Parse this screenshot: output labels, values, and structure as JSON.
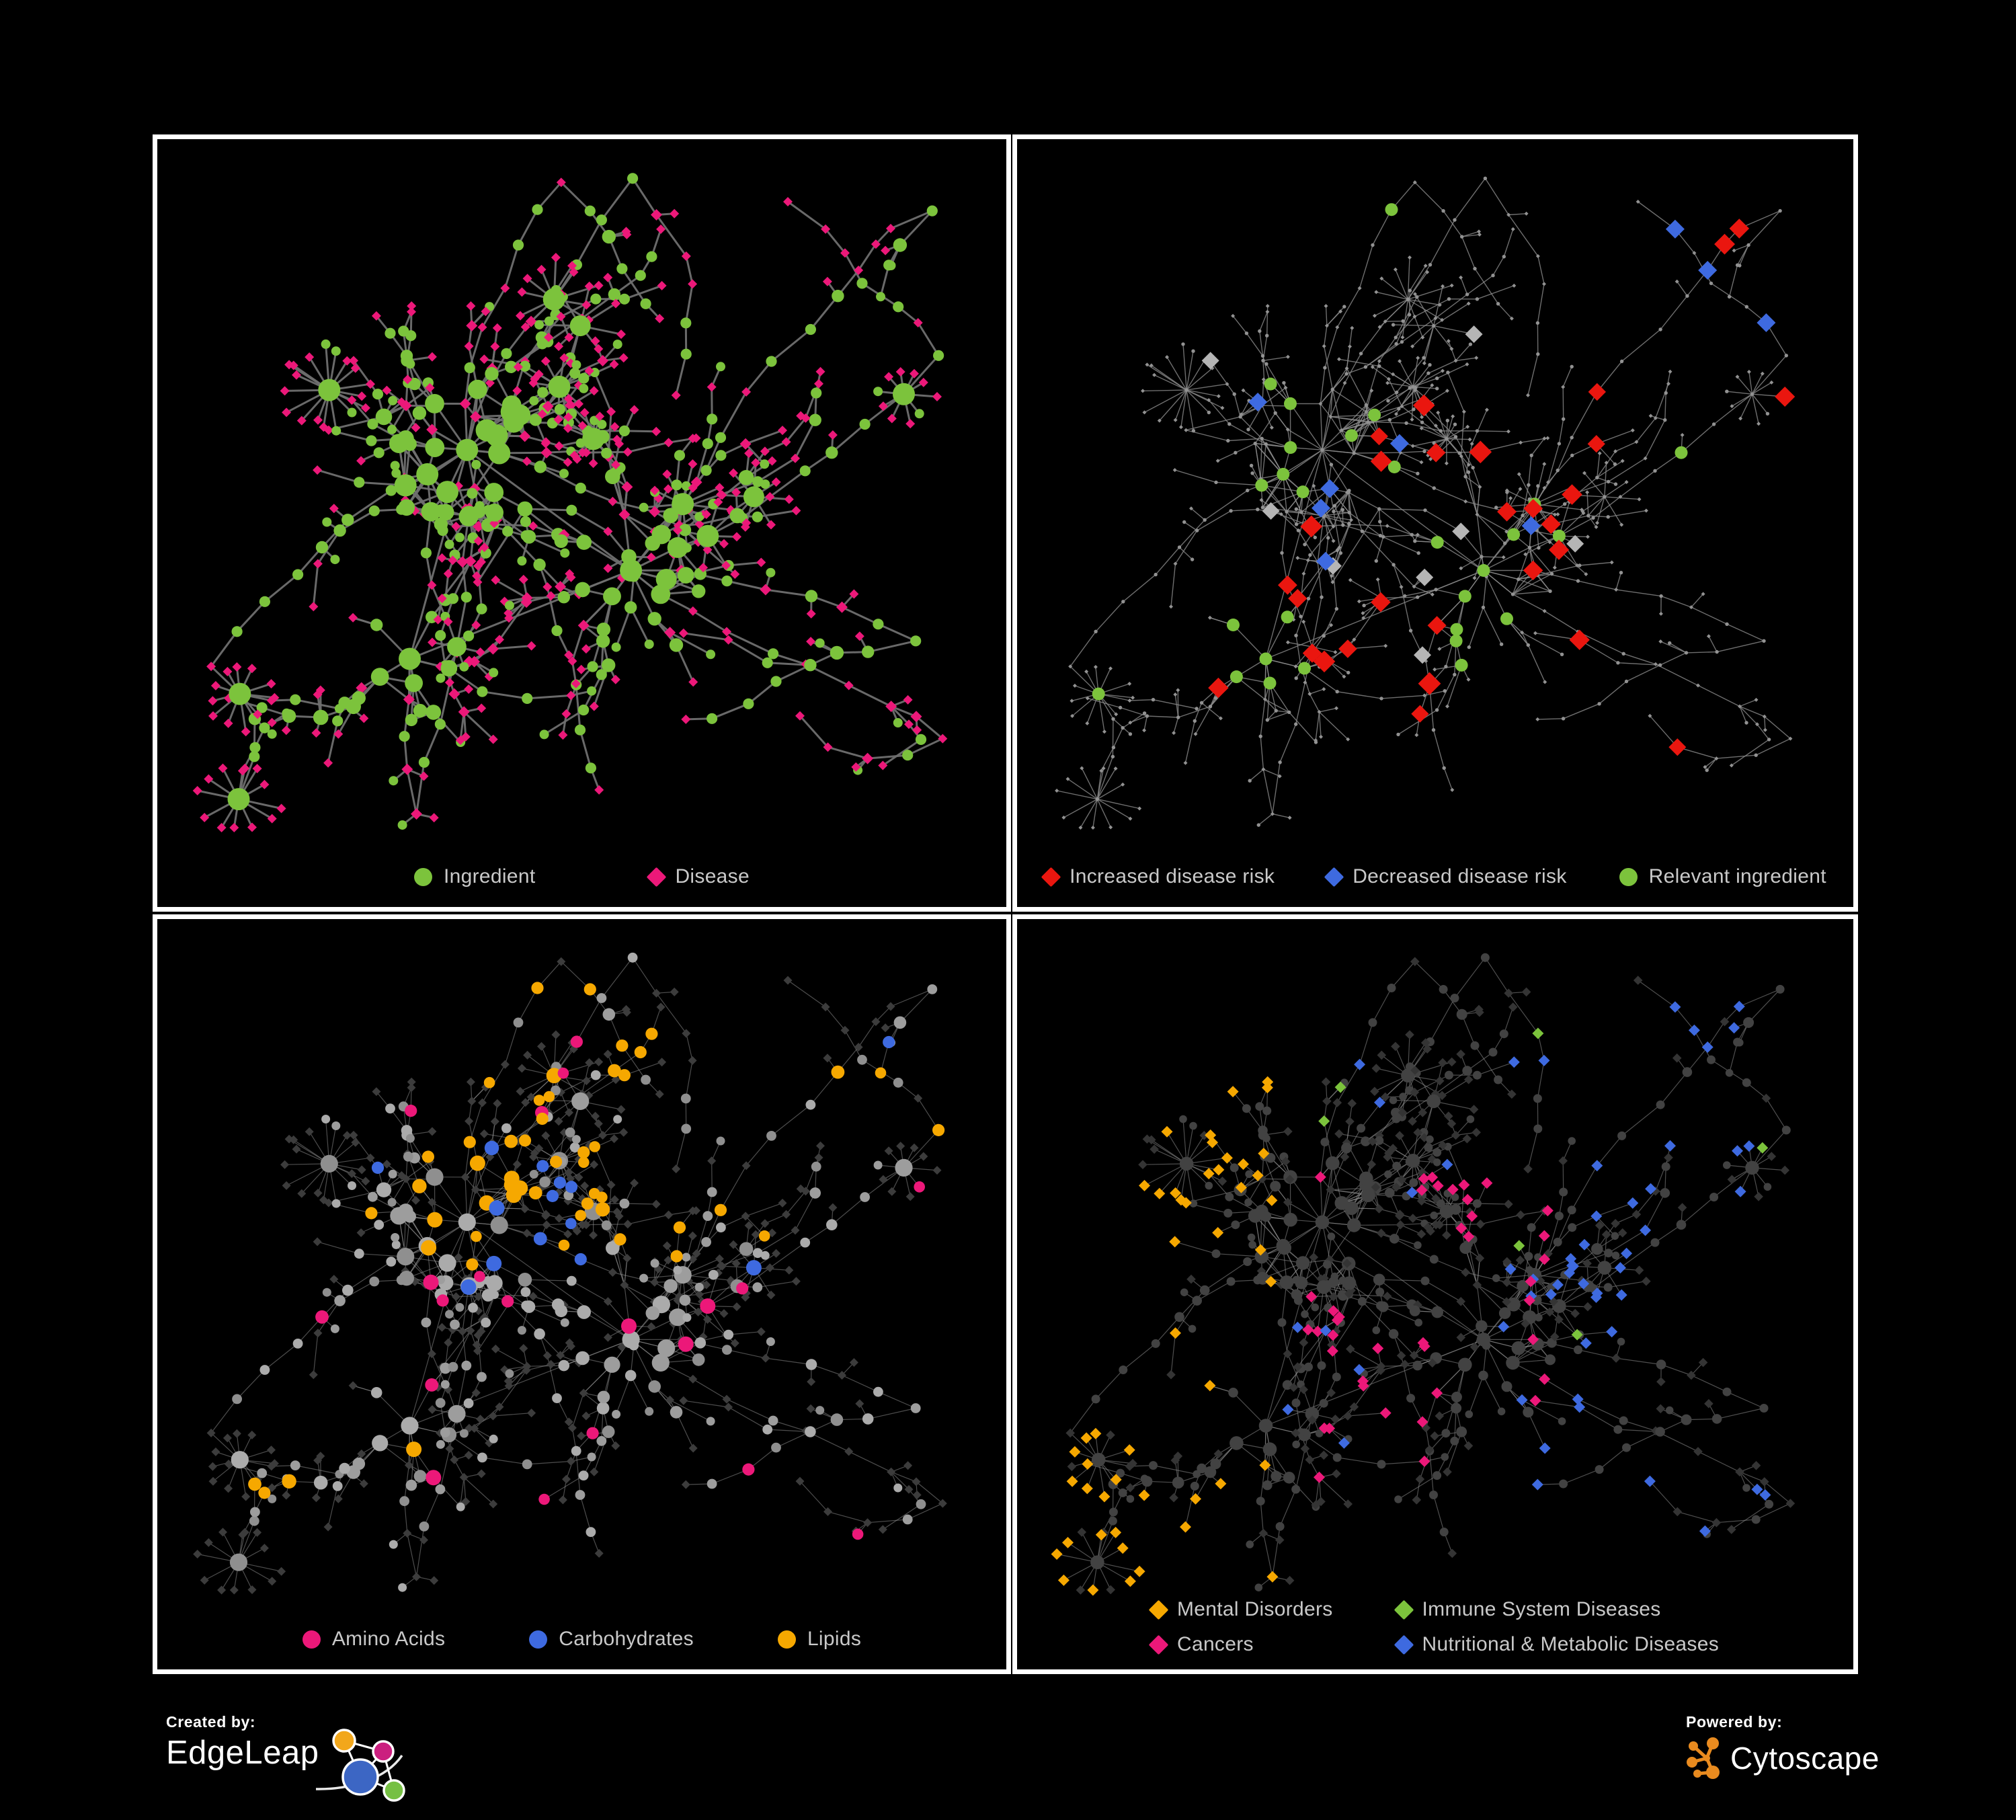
{
  "figure": {
    "background": "#000000",
    "panel_border_color": "#ffffff",
    "legend_text_color": "#c9c9c9"
  },
  "branding": {
    "created_by_label": "Created by:",
    "created_by_name": "EdgeLeap",
    "powered_by_label": "Powered by:",
    "powered_by_name": "Cytoscape",
    "edgeleap_logo_colors": [
      "#f2a71b",
      "#cb1f7f",
      "#3c66c4",
      "#76c043"
    ],
    "cytoscape_logo_color": "#e98b1f"
  },
  "network": {
    "seed": 1337,
    "chain_nodes": 330,
    "bursts": 14,
    "extra_edges": 34
  },
  "panels": [
    {
      "id": "ingredient-disease",
      "legend": [
        {
          "label": "Ingredient",
          "shape": "circle",
          "color": "#7cc33c"
        },
        {
          "label": "Disease",
          "shape": "diamond",
          "color": "#ec1879"
        }
      ],
      "style": {
        "seed": 11,
        "edge_color": "#6f6f6f",
        "edge_width": 3,
        "edge_opacity": 0.95,
        "classes": {
          "ingredient": "#7cc33c",
          "disease": "#ec1879"
        }
      }
    },
    {
      "id": "disease-risk",
      "legend": [
        {
          "label": "Increased disease risk",
          "shape": "diamond",
          "color": "#ea160f"
        },
        {
          "label": "Decreased disease risk",
          "shape": "diamond",
          "color": "#3e6ae0"
        },
        {
          "label": "Relevant ingredient",
          "shape": "circle",
          "color": "#7cc33c"
        }
      ],
      "style": {
        "seed": 22,
        "edge_color": "#8a8a8a",
        "edge_width": 1.4,
        "edge_opacity": 0.8,
        "classes": {
          "base": "#929292",
          "increased": "#ea160f",
          "decreased": "#3e6ae0",
          "neutral": "#b5b5b5",
          "relevant": "#7cc33c"
        }
      }
    },
    {
      "id": "nutrient-classes",
      "legend": [
        {
          "label": "Amino Acids",
          "shape": "circle",
          "color": "#ec1879"
        },
        {
          "label": "Carbohydrates",
          "shape": "circle",
          "color": "#3e6ae0"
        },
        {
          "label": "Lipids",
          "shape": "circle",
          "color": "#f6a800"
        }
      ],
      "style": {
        "seed": 33,
        "edge_color": "#9a9a9a",
        "edge_width": 1.2,
        "edge_opacity": 0.5,
        "classes": {
          "amino": "#ec1879",
          "carb": "#3e6ae0",
          "lipid": "#f6a800",
          "ingredient_other": "#9b9b9b",
          "disease_dim": "#3c3c3c"
        }
      }
    },
    {
      "id": "disease-categories",
      "legend": [
        {
          "label": "Mental Disorders",
          "shape": "diamond",
          "color": "#f6a800"
        },
        {
          "label": "Immune System Diseases",
          "shape": "diamond",
          "color": "#7cc33c"
        },
        {
          "label": "Cancers",
          "shape": "diamond",
          "color": "#ec1879"
        },
        {
          "label": "Nutritional & Metabolic Diseases",
          "shape": "diamond",
          "color": "#3e6ae0"
        }
      ],
      "legend_columns": 2,
      "style": {
        "seed": 44,
        "edge_color": "#8f8f8f",
        "edge_width": 1.2,
        "edge_opacity": 0.55,
        "classes": {
          "mental": "#f6a800",
          "immune": "#7cc33c",
          "cancer": "#ec1879",
          "nutritional": "#3e6ae0",
          "disease_other": "#343434",
          "ingredient_dim": "#424242"
        }
      }
    }
  ]
}
